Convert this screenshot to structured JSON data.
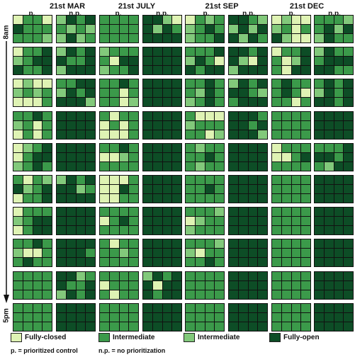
{
  "headers": {
    "months": [
      "21st MAR",
      "21st JULY",
      "21st SEP",
      "21st DEC"
    ],
    "p_label": "p.",
    "np_label": "n.p."
  },
  "time_axis": {
    "start": "8am",
    "end": "5pm"
  },
  "colors": {
    "fully_closed": "#dff3b4",
    "intermediate_mid": "#3b9a4a",
    "intermediate_light": "#82c97b",
    "fully_open": "#0d4d26",
    "grid_line": "#111111"
  },
  "legend": {
    "fully_closed": "Fully-closed",
    "intermediate_mid": "Intermediate",
    "intermediate_light": "Intermediate",
    "fully_open": "Fully-open"
  },
  "notes": {
    "p": "p. = prioritized control",
    "np": "n.p. = no prioritization"
  },
  "grid": {
    "legend_key": "c = Fully-closed, m = Intermediate (medium green), l = Intermediate (light green), o = Fully-open",
    "rows": [
      [
        [
          "cmmc",
          "ommm",
          "mmml"
        ],
        [
          "lomo",
          "mlml",
          "lolm"
        ],
        [
          "mmmm",
          "mmmm",
          "mmmm"
        ],
        [
          "oolc",
          "olom",
          "oooo"
        ],
        [
          "cmlm",
          "lmom",
          "lmmo"
        ],
        [
          "ooml",
          "lolo",
          "olom"
        ],
        [
          "clcc",
          "lmcm",
          "olcc"
        ],
        [
          "mmml",
          "molo",
          "lomm"
        ]
      ],
      [
        [
          "cmmo",
          "lmoo",
          "ommo"
        ],
        [
          "lomo",
          "ommo",
          "looo"
        ],
        [
          "lmmm",
          "mcoo",
          "lmmo"
        ],
        [
          "oooo",
          "oooo",
          "oooo"
        ],
        [
          "mmmo",
          "lomc",
          "omoo"
        ],
        [
          "oomo",
          "olco",
          "looo"
        ],
        [
          "cmmo",
          "mclo",
          "mcoo"
        ],
        [
          "lomm",
          "mooo",
          "oomm"
        ]
      ],
      [
        [
          "clcc",
          "lmlm",
          "cccm"
        ],
        [
          "mmoo",
          "lomo",
          "oool"
        ],
        [
          "mmom",
          "mmcm",
          "mmcl"
        ],
        [
          "oooo",
          "oooo",
          "oooo"
        ],
        [
          "mmom",
          "mlom",
          "lmom"
        ],
        [
          "lomo",
          "ooml",
          "mooo"
        ],
        [
          "momm",
          "momc",
          "mmcm"
        ],
        [
          "momo",
          "lomo",
          "oomo"
        ]
      ],
      [
        [
          "mmom",
          "lmcm",
          "cmcm"
        ],
        [
          "oooo",
          "oooo",
          "oooo"
        ],
        [
          "mcmm",
          "cmcm",
          "cccm"
        ],
        [
          "oooo",
          "oooo",
          "oooo"
        ],
        [
          "mccc",
          "lmmm",
          "mmcl"
        ],
        [
          "ooom",
          "oomo",
          "oool"
        ],
        [
          "mmmm",
          "mmmm",
          "mmmm"
        ],
        [
          "oooo",
          "oooo",
          "oooo"
        ]
      ],
      [
        [
          "clmo",
          "cmoo",
          "lmom"
        ],
        [
          "oooo",
          "oooo",
          "oooo"
        ],
        [
          "mmom",
          "cclm",
          "mmmm"
        ],
        [
          "oooo",
          "oooo",
          "oooo"
        ],
        [
          "mlmm",
          "mmom",
          "mlmm"
        ],
        [
          "oooo",
          "oooo",
          "oooo"
        ],
        [
          "cmmm",
          "ccmo",
          "mmmm"
        ],
        [
          "mmmo",
          "oomo",
          "mloo"
        ]
      ],
      [
        [
          "mcml",
          "olmo",
          "cmmo"
        ],
        [
          "lomo",
          "oolm",
          "oooo"
        ],
        [
          "cccm",
          "ccom",
          "ccmm"
        ],
        [
          "oooo",
          "oooo",
          "oooo"
        ],
        [
          "mmmm",
          "mmom",
          "mmmm"
        ],
        [
          "oooo",
          "oooo",
          "oooo"
        ],
        [
          "mmmm",
          "mmmm",
          "mmmm"
        ],
        [
          "oooo",
          "oooo",
          "oooo"
        ]
      ],
      [
        [
          "cmmm",
          "lmoo",
          "cmoo"
        ],
        [
          "oooo",
          "oooo",
          "oooo"
        ],
        [
          "mmmm",
          "cmom",
          "mmmm"
        ],
        [
          "oooo",
          "oooo",
          "oooo"
        ],
        [
          "mmml",
          "clmm",
          "lmmm"
        ],
        [
          "oooo",
          "oooo",
          "oooo"
        ],
        [
          "mmmm",
          "mmmm",
          "mmmm"
        ],
        [
          "oooo",
          "oooo",
          "oooo"
        ]
      ],
      [
        [
          "mmom",
          "lccm",
          "momm"
        ],
        [
          "oooo",
          "ooom",
          "oooo"
        ],
        [
          "mcmm",
          "mmlm",
          "mmmm"
        ],
        [
          "oooo",
          "oooo",
          "oooo"
        ],
        [
          "mmml",
          "lcmm",
          "mmom"
        ],
        [
          "oooo",
          "oooo",
          "oooo"
        ],
        [
          "mmmm",
          "mmmm",
          "mmmm"
        ],
        [
          "oooo",
          "oooo",
          "oooo"
        ]
      ],
      [
        [
          "mmmm",
          "mmmm",
          "mmmm"
        ],
        [
          "oolm",
          "ommo",
          "lomo"
        ],
        [
          "mmmm",
          "cmmm",
          "mcmm"
        ],
        [
          "lomo",
          "ocoo",
          "omoo"
        ],
        [
          "mmmm",
          "mmmm",
          "mmmm"
        ],
        [
          "oooo",
          "oooo",
          "oooo"
        ],
        [
          "mmmm",
          "mmmm",
          "mmmm"
        ],
        [
          "oooo",
          "oooo",
          "oooo"
        ]
      ],
      [
        [
          "mmmm",
          "mmmm",
          "mmmm"
        ],
        [
          "oooo",
          "oooo",
          "oooo"
        ],
        [
          "mmmm",
          "mmmm",
          "mmmm"
        ],
        [
          "oooo",
          "oooo",
          "oooo"
        ],
        [
          "mmmm",
          "mmmm",
          "mmmm"
        ],
        [
          "oooo",
          "oooo",
          "oooo"
        ],
        [
          "mmmm",
          "mmmm",
          "mmmm"
        ],
        [
          "oooo",
          "oooo",
          "oooo"
        ]
      ]
    ]
  }
}
